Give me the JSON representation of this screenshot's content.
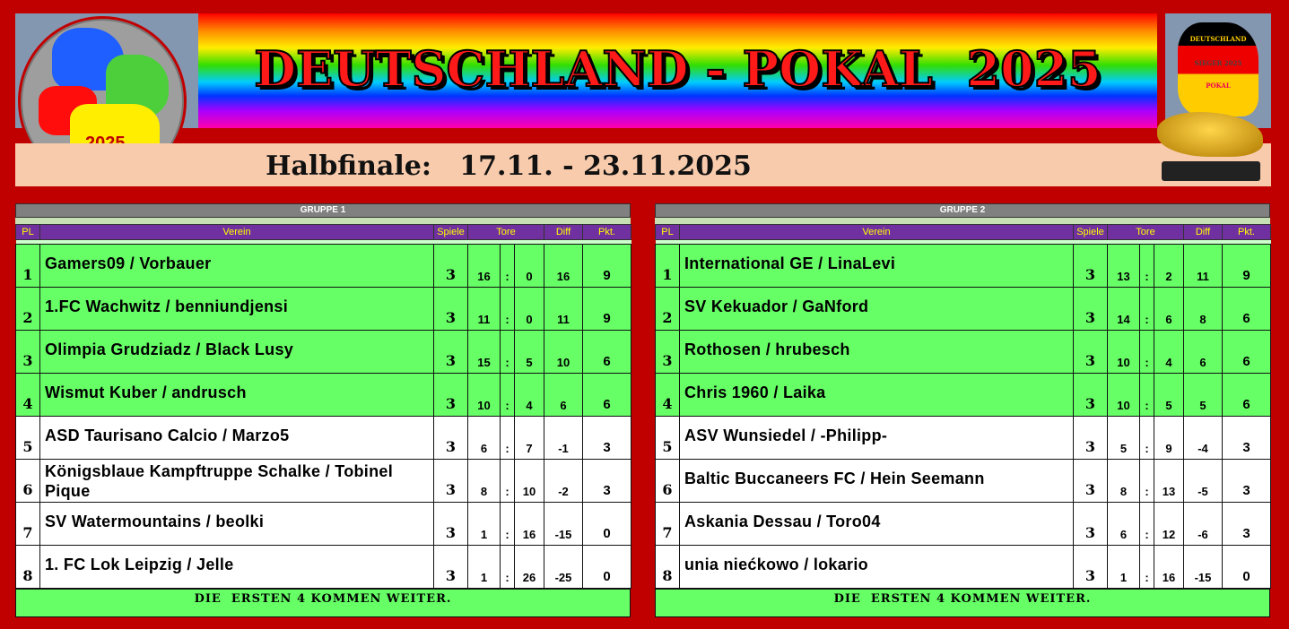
{
  "header": {
    "title": "DEUTSCHLAND - POKAL  2025",
    "logo_left_year": "2025",
    "logo_right_lines": [
      "DEUTSCHLAND",
      "SIEGER 2025",
      "POKAL"
    ],
    "subtitle": "Halbfinale:   17.11. - 23.11.2025"
  },
  "columns": {
    "pl": "PL",
    "verein": "Verein",
    "spiele": "Spiele",
    "tore": "Tore",
    "diff": "Diff",
    "pkt": "Pkt."
  },
  "colors": {
    "background": "#c00000",
    "qualified": "#66ff66",
    "header": "#7030a0",
    "header_text": "#ffff00"
  },
  "groups": [
    {
      "title": "GRUPPE 1",
      "footer": "DIE  ERSTEN 4 KOMMEN WEITER.",
      "rows": [
        {
          "pl": "1",
          "club": "Gamers09 / Vorbauer",
          "spiele": "3",
          "tore_for": "16",
          "sep": ":",
          "tore_against": "0",
          "diff": "16",
          "pkt": "9",
          "qualified": true
        },
        {
          "pl": "2",
          "club": "1.FC Wachwitz / benniundjensi",
          "spiele": "3",
          "tore_for": "11",
          "sep": ":",
          "tore_against": "0",
          "diff": "11",
          "pkt": "9",
          "qualified": true
        },
        {
          "pl": "3",
          "club": "Olimpia Grudziadz / Black Lusy",
          "spiele": "3",
          "tore_for": "15",
          "sep": ":",
          "tore_against": "5",
          "diff": "10",
          "pkt": "6",
          "qualified": true
        },
        {
          "pl": "4",
          "club": "Wismut Kuber / andrusch",
          "spiele": "3",
          "tore_for": "10",
          "sep": ":",
          "tore_against": "4",
          "diff": "6",
          "pkt": "6",
          "qualified": true
        },
        {
          "pl": "5",
          "club": "ASD Taurisano Calcio / Marzo5",
          "spiele": "3",
          "tore_for": "6",
          "sep": ":",
          "tore_against": "7",
          "diff": "-1",
          "pkt": "3",
          "qualified": false
        },
        {
          "pl": "6",
          "club": "Königsblaue Kampftruppe Schalke / Tobinel Pique",
          "spiele": "3",
          "tore_for": "8",
          "sep": ":",
          "tore_against": "10",
          "diff": "-2",
          "pkt": "3",
          "qualified": false
        },
        {
          "pl": "7",
          "club": "SV Watermountains / beolki",
          "spiele": "3",
          "tore_for": "1",
          "sep": ":",
          "tore_against": "16",
          "diff": "-15",
          "pkt": "0",
          "qualified": false
        },
        {
          "pl": "8",
          "club": "1. FC Lok Leipzig / Jelle",
          "spiele": "3",
          "tore_for": "1",
          "sep": ":",
          "tore_against": "26",
          "diff": "-25",
          "pkt": "0",
          "qualified": false
        }
      ]
    },
    {
      "title": "GRUPPE 2",
      "footer": "DIE  ERSTEN 4 KOMMEN WEITER.",
      "rows": [
        {
          "pl": "1",
          "club": "International GE / LinaLevi",
          "spiele": "3",
          "tore_for": "13",
          "sep": ":",
          "tore_against": "2",
          "diff": "11",
          "pkt": "9",
          "qualified": true
        },
        {
          "pl": "2",
          "club": "SV Kekuador / GaNford",
          "spiele": "3",
          "tore_for": "14",
          "sep": ":",
          "tore_against": "6",
          "diff": "8",
          "pkt": "6",
          "qualified": true
        },
        {
          "pl": "3",
          "club": "Rothosen / hrubesch",
          "spiele": "3",
          "tore_for": "10",
          "sep": ":",
          "tore_against": "4",
          "diff": "6",
          "pkt": "6",
          "qualified": true
        },
        {
          "pl": "4",
          "club": "Chris 1960 / Laika",
          "spiele": "3",
          "tore_for": "10",
          "sep": ":",
          "tore_against": "5",
          "diff": "5",
          "pkt": "6",
          "qualified": true
        },
        {
          "pl": "5",
          "club": "ASV Wunsiedel / -Philipp-",
          "spiele": "3",
          "tore_for": "5",
          "sep": ":",
          "tore_against": "9",
          "diff": "-4",
          "pkt": "3",
          "qualified": false
        },
        {
          "pl": "6",
          "club": "Baltic Buccaneers FC / Hein Seemann",
          "spiele": "3",
          "tore_for": "8",
          "sep": ":",
          "tore_against": "13",
          "diff": "-5",
          "pkt": "3",
          "qualified": false
        },
        {
          "pl": "7",
          "club": "Askania Dessau / Toro04",
          "spiele": "3",
          "tore_for": "6",
          "sep": ":",
          "tore_against": "12",
          "diff": "-6",
          "pkt": "3",
          "qualified": false
        },
        {
          "pl": "8",
          "club": "unia niećkowo / lokario",
          "spiele": "3",
          "tore_for": "1",
          "sep": ":",
          "tore_against": "16",
          "diff": "-15",
          "pkt": "0",
          "qualified": false
        }
      ]
    }
  ]
}
